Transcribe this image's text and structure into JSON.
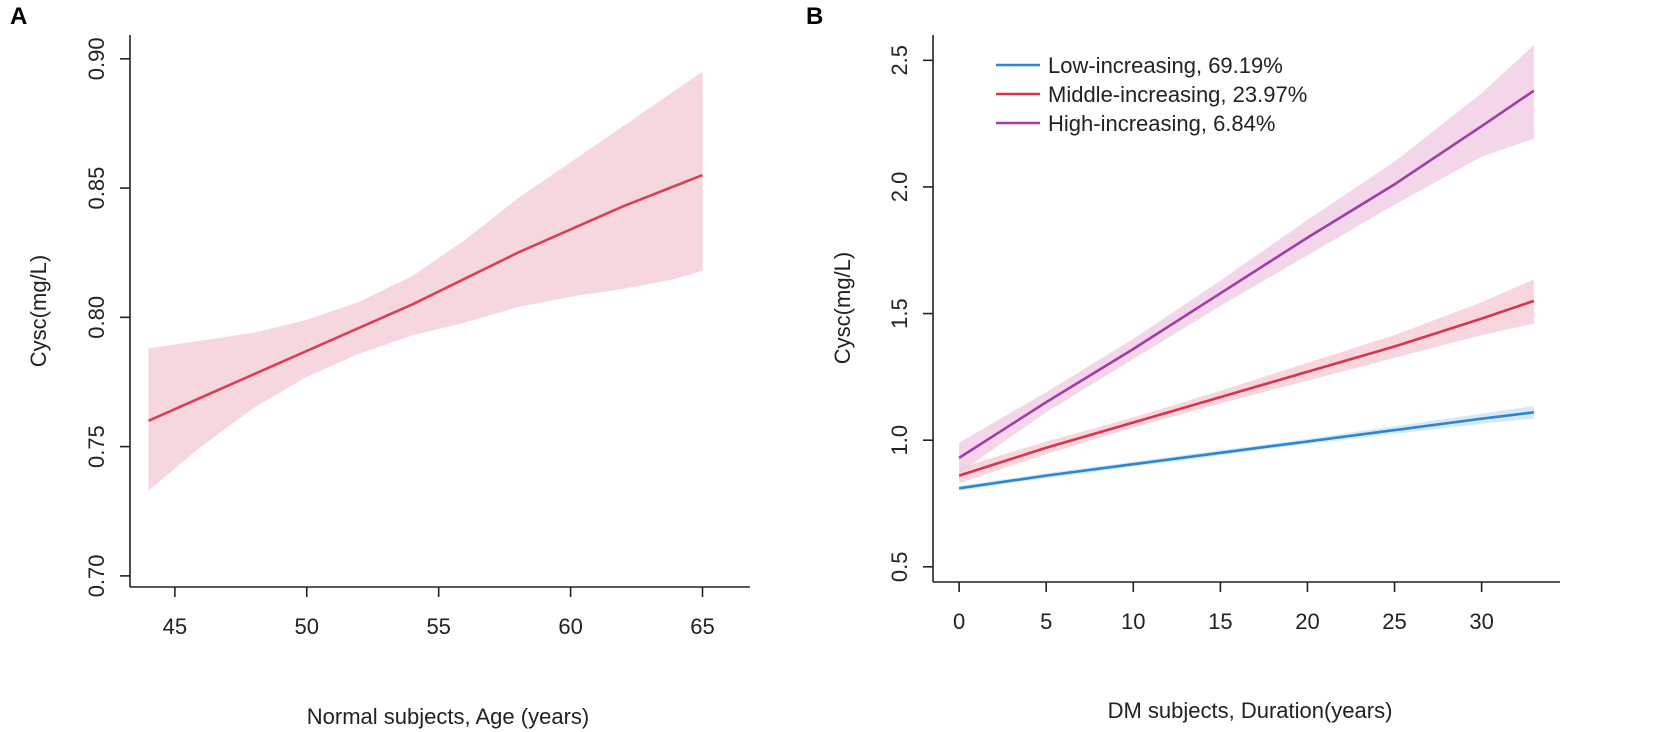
{
  "chart_data": [
    {
      "panel": "A",
      "type": "line",
      "xlabel": "Normal subjects, Age (years)",
      "ylabel": "Cysc(mg/L)",
      "xlim": [
        43.3,
        66.8
      ],
      "ylim": [
        0.6957,
        0.9092
      ],
      "xticks": [
        45,
        50,
        55,
        60,
        65
      ],
      "xtick_labels": [
        "45",
        "50",
        "55",
        "60",
        "65"
      ],
      "yticks": [
        0.7,
        0.75,
        0.8,
        0.85,
        0.9
      ],
      "ytick_labels": [
        "0.70",
        "0.75",
        "0.80",
        "0.85",
        "0.90"
      ],
      "grid": false,
      "series": [
        {
          "name": "Normal subjects",
          "color": "#d8405a",
          "band_color": "#f2c9d2",
          "x": [
            44,
            46,
            48,
            50,
            52,
            54,
            56,
            58,
            60,
            62,
            64,
            65
          ],
          "values": [
            0.76,
            0.769,
            0.778,
            0.787,
            0.796,
            0.805,
            0.815,
            0.825,
            0.834,
            0.843,
            0.851,
            0.855
          ],
          "lower": [
            0.733,
            0.75,
            0.765,
            0.777,
            0.786,
            0.793,
            0.798,
            0.804,
            0.808,
            0.811,
            0.815,
            0.818
          ],
          "upper": [
            0.788,
            0.791,
            0.794,
            0.799,
            0.806,
            0.816,
            0.83,
            0.846,
            0.86,
            0.874,
            0.888,
            0.895
          ]
        }
      ]
    },
    {
      "panel": "B",
      "type": "line",
      "xlabel": "DM subjects, Duration(years)",
      "ylabel": "Cysc(mg/L)",
      "xlim": [
        -1.5,
        34.5
      ],
      "ylim": [
        0.44,
        2.6
      ],
      "xticks": [
        0,
        5,
        10,
        15,
        20,
        25,
        30
      ],
      "xtick_labels": [
        "0",
        "5",
        "10",
        "15",
        "20",
        "25",
        "30"
      ],
      "yticks": [
        0.5,
        1.0,
        1.5,
        2.0,
        2.5
      ],
      "ytick_labels": [
        "0.5",
        "1.0",
        "1.5",
        "2.0",
        "2.5"
      ],
      "grid": false,
      "legend_position": "top-left",
      "series": [
        {
          "name": "Low-increasing, 69.19%",
          "color": "#2f86cf",
          "band_color": "#c9e2f5",
          "x": [
            0,
            5,
            10,
            15,
            20,
            25,
            30,
            33
          ],
          "values": [
            0.81,
            0.86,
            0.905,
            0.95,
            0.995,
            1.04,
            1.085,
            1.11
          ],
          "lower": [
            0.8,
            0.85,
            0.895,
            0.94,
            0.985,
            1.025,
            1.065,
            1.085
          ],
          "upper": [
            0.82,
            0.87,
            0.915,
            0.96,
            1.005,
            1.055,
            1.105,
            1.135
          ]
        },
        {
          "name": "Middle-increasing, 23.97%",
          "color": "#d8344f",
          "band_color": "#f5c8d2",
          "x": [
            0,
            5,
            10,
            15,
            20,
            25,
            30,
            33
          ],
          "values": [
            0.86,
            0.97,
            1.07,
            1.17,
            1.27,
            1.37,
            1.48,
            1.55
          ],
          "lower": [
            0.83,
            0.945,
            1.05,
            1.145,
            1.235,
            1.325,
            1.415,
            1.46
          ],
          "upper": [
            0.89,
            0.995,
            1.09,
            1.195,
            1.305,
            1.415,
            1.545,
            1.635
          ]
        },
        {
          "name": "High-increasing, 6.84%",
          "color": "#a23ba6",
          "band_color": "#efc8e2",
          "x": [
            0,
            5,
            10,
            15,
            20,
            25,
            30,
            33
          ],
          "values": [
            0.93,
            1.15,
            1.36,
            1.58,
            1.8,
            2.01,
            2.24,
            2.38
          ],
          "lower": [
            0.87,
            1.11,
            1.32,
            1.53,
            1.73,
            1.93,
            2.12,
            2.19
          ],
          "upper": [
            0.99,
            1.19,
            1.4,
            1.63,
            1.87,
            2.1,
            2.37,
            2.56
          ]
        }
      ]
    }
  ]
}
